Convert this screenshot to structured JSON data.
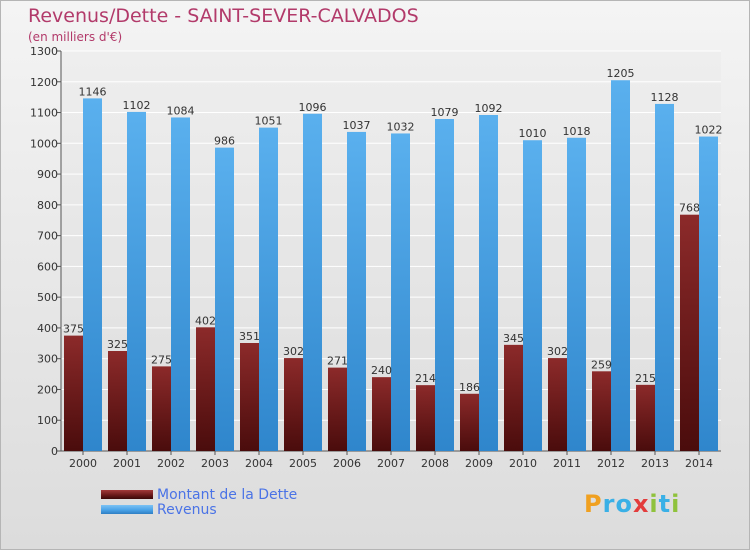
{
  "header": {
    "title": "Revenus/Dette - SAINT-SEVER-CALVADOS",
    "subtitle": "(en milliers d'€)"
  },
  "legend": {
    "items": [
      {
        "label": "Montant de la Dette",
        "color": "#6b1a1a"
      },
      {
        "label": "Revenus",
        "color": "#4aa3e8"
      }
    ]
  },
  "logo": {
    "letters": [
      "P",
      "r",
      "o",
      "x",
      "i",
      "t",
      "i"
    ],
    "colors": [
      "#f0a020",
      "#3ab0e6",
      "#3ab0e6",
      "#e33c3c",
      "#8fc23c",
      "#3ab0e6",
      "#8fc23c"
    ]
  },
  "chart_data": {
    "type": "bar",
    "categories": [
      "2000",
      "2001",
      "2002",
      "2003",
      "2004",
      "2005",
      "2006",
      "2007",
      "2008",
      "2009",
      "2010",
      "2011",
      "2012",
      "2013",
      "2014"
    ],
    "series": [
      {
        "name": "Montant de la Dette",
        "values": [
          375,
          325,
          275,
          402,
          351,
          302,
          271,
          240,
          214,
          186,
          345,
          302,
          259,
          215,
          768
        ],
        "color": "#6b1a1a"
      },
      {
        "name": "Revenus",
        "values": [
          1146,
          1102,
          1084,
          986,
          1051,
          1096,
          1037,
          1032,
          1079,
          1092,
          1010,
          1018,
          1205,
          1128,
          1022
        ],
        "color": "#4aa3e8"
      }
    ],
    "yticks": [
      0,
      100,
      200,
      300,
      400,
      500,
      600,
      700,
      800,
      900,
      1000,
      1100,
      1200,
      1300
    ],
    "ylim": [
      0,
      1300
    ],
    "grid": true,
    "title": "Revenus/Dette - SAINT-SEVER-CALVADOS",
    "ylabel": "(en milliers d'€)"
  }
}
